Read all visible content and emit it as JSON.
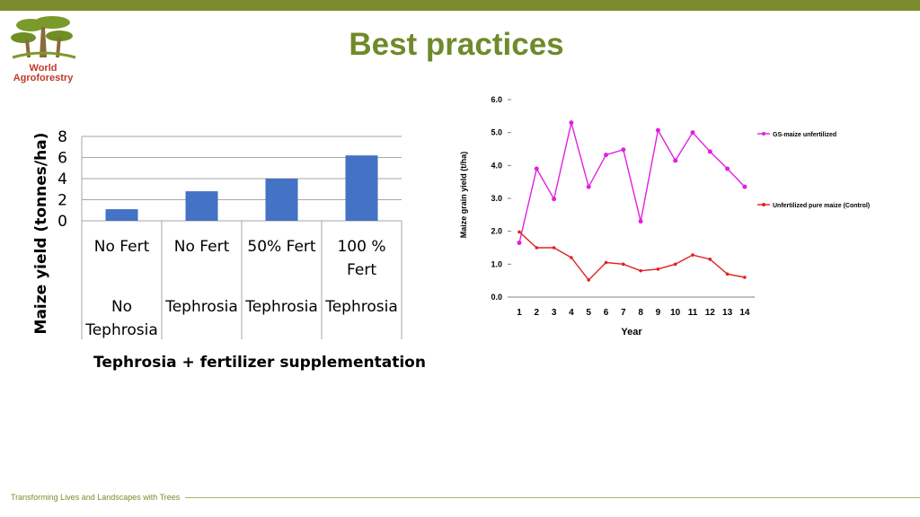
{
  "header": {
    "title": "Best practices"
  },
  "logo": {
    "line1": "World",
    "line2": "Agroforestry"
  },
  "footer": {
    "text": "Transforming Lives and Landscapes with Trees"
  },
  "chart_data": [
    {
      "type": "bar",
      "categories": [
        [
          "No Fert",
          "No Tephrosia"
        ],
        [
          "No Fert",
          "Tephrosia"
        ],
        [
          "50% Fert",
          "Tephrosia"
        ],
        [
          "100 % Fert",
          "Tephrosia"
        ]
      ],
      "values": [
        1.1,
        2.8,
        4.0,
        6.2
      ],
      "title": "",
      "xlabel": "Tephrosia + fertilizer supplementation",
      "ylabel": "Maize yield (tonnes/ha)",
      "ylim": [
        0,
        8
      ],
      "yticks": [
        "0",
        "2",
        "4",
        "6",
        "8"
      ],
      "grid": true,
      "color": "#4472c4"
    },
    {
      "type": "line",
      "x": [
        "1",
        "2",
        "3",
        "4",
        "5",
        "6",
        "7",
        "8",
        "9",
        "10",
        "11",
        "12",
        "13",
        "14"
      ],
      "series": [
        {
          "name": "GS-maize unfertilized",
          "color": "#e020e0",
          "values": [
            1.65,
            3.9,
            2.98,
            5.3,
            3.35,
            4.32,
            4.48,
            2.3,
            5.07,
            4.15,
            5.0,
            4.42,
            3.9,
            3.35
          ]
        },
        {
          "name": "Unfertilized pure maize (Control)",
          "color": "#e02020",
          "values": [
            1.98,
            1.5,
            1.5,
            1.2,
            0.52,
            1.05,
            1.0,
            0.8,
            0.85,
            1.0,
            1.28,
            1.15,
            0.7,
            0.6
          ]
        }
      ],
      "xlabel": "Year",
      "ylabel": "Maize grain yield (t/ha)",
      "ylim": [
        0,
        6
      ],
      "yticks": [
        "0.0",
        "1.0",
        "2.0",
        "3.0",
        "4.0",
        "5.0",
        "6.0"
      ],
      "grid": false,
      "legend": "right"
    }
  ]
}
